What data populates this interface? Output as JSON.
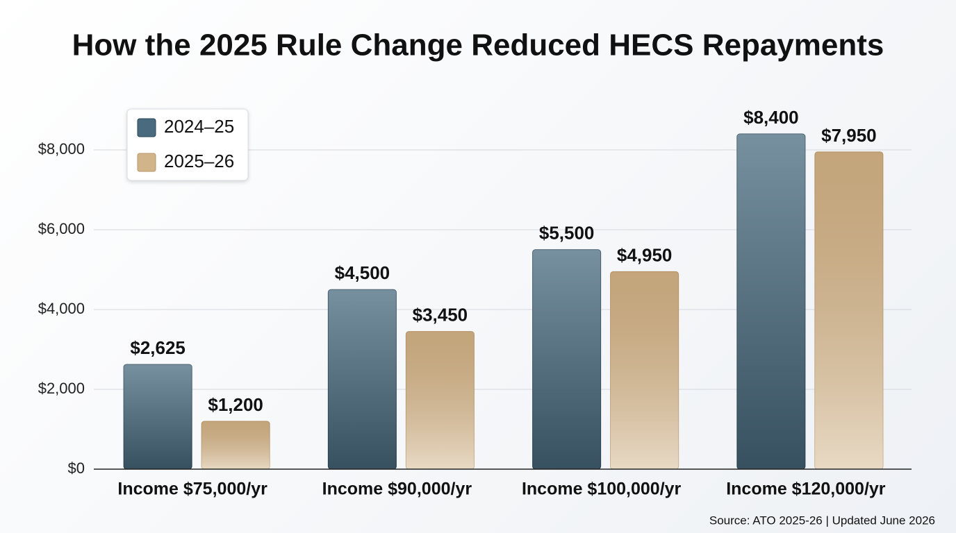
{
  "chart_data": {
    "type": "bar",
    "title": "How the 2025 Rule Change Reduced HECS Repayments",
    "categories": [
      "Income $75,000/yr",
      "Income $90,000/yr",
      "Income $100,000/yr",
      "Income $120,000/yr"
    ],
    "series": [
      {
        "name": "2024–25",
        "color": "#4a6b7f",
        "values": [
          2625,
          4500,
          5500,
          8400
        ],
        "value_labels": [
          "$2,625",
          "$4,500",
          "$5,500",
          "$8,400"
        ]
      },
      {
        "name": "2025–26",
        "color": "#d2b48a",
        "values": [
          1200,
          3450,
          4950,
          7950
        ],
        "value_labels": [
          "$1,200",
          "$3,450",
          "$4,950",
          "$7,950"
        ]
      }
    ],
    "ylim": [
      0,
      9000
    ],
    "yticks": [
      {
        "value": 0,
        "label": "$0"
      },
      {
        "value": 2000,
        "label": "$2,000"
      },
      {
        "value": 4000,
        "label": "$4,000"
      },
      {
        "value": 6000,
        "label": "$6,000"
      },
      {
        "value": 8000,
        "label": "$8,000"
      }
    ],
    "grid": true,
    "legend": "upper-left",
    "source": "Source: ATO 2025-26 | Updated June 2026"
  }
}
